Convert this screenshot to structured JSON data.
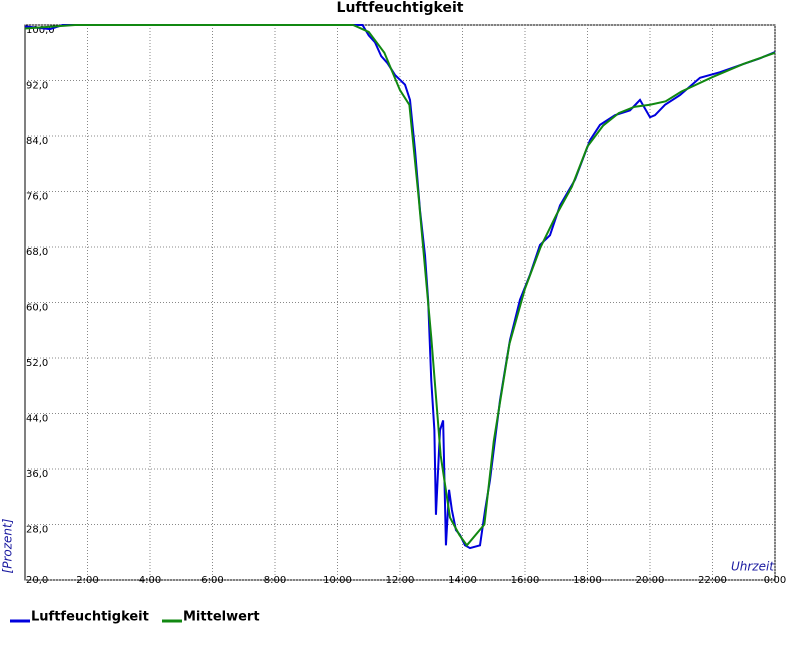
{
  "chart_data": {
    "type": "line",
    "title": "Luftfeuchtigkeit",
    "x_label": "Uhrzeit",
    "y_label": "[Prozent]",
    "xlim": [
      0,
      24
    ],
    "ylim": [
      20,
      100
    ],
    "grid": true,
    "legend": "bottom-left",
    "xticks": [
      {
        "value": 2,
        "label": "2:00"
      },
      {
        "value": 4,
        "label": "4:00"
      },
      {
        "value": 6,
        "label": "6:00"
      },
      {
        "value": 8,
        "label": "8:00"
      },
      {
        "value": 10,
        "label": "10:00"
      },
      {
        "value": 12,
        "label": "12:00"
      },
      {
        "value": 14,
        "label": "14:00"
      },
      {
        "value": 16,
        "label": "16:00"
      },
      {
        "value": 18,
        "label": "18:00"
      },
      {
        "value": 20,
        "label": "20:00"
      },
      {
        "value": 22,
        "label": "22:00"
      },
      {
        "value": 24,
        "label": "0:00"
      }
    ],
    "yticks": [
      {
        "value": 20,
        "label": "20,0"
      },
      {
        "value": 28,
        "label": "28,0"
      },
      {
        "value": 36,
        "label": "36,0"
      },
      {
        "value": 44,
        "label": "44,0"
      },
      {
        "value": 52,
        "label": "52,0"
      },
      {
        "value": 60,
        "label": "60,0"
      },
      {
        "value": 68,
        "label": "68,0"
      },
      {
        "value": 76,
        "label": "76,0"
      },
      {
        "value": 84,
        "label": "84,0"
      },
      {
        "value": 92,
        "label": "92,0"
      },
      {
        "value": 100,
        "label": "100,0"
      }
    ],
    "series": [
      {
        "name": "Luftfeuchtigkeit",
        "color": "#0000dd",
        "x": [
          0,
          0.8,
          1.2,
          10.5,
          10.8,
          11.0,
          11.2,
          11.4,
          11.6,
          11.84,
          12.16,
          12.32,
          12.48,
          12.64,
          12.8,
          12.9,
          13.0,
          13.1,
          13.15,
          13.28,
          13.38,
          13.47,
          13.57,
          13.66,
          13.79,
          13.92,
          14.08,
          14.24,
          14.56,
          14.72,
          14.88,
          15.04,
          15.2,
          15.36,
          15.52,
          15.84,
          16.16,
          16.48,
          16.8,
          17.12,
          17.6,
          18.08,
          18.4,
          18.88,
          19.36,
          19.68,
          20.0,
          20.16,
          20.48,
          20.96,
          21.6,
          22.24,
          22.88,
          23.52,
          24
        ],
        "values": [
          99.8,
          99.4,
          100,
          100,
          100,
          98.5,
          97.5,
          95.5,
          94.5,
          92.8,
          91.4,
          89.2,
          82,
          73.3,
          66.8,
          60.4,
          48.8,
          41.6,
          29.4,
          41.6,
          43,
          25,
          33,
          30.1,
          27.2,
          26.5,
          25,
          24.6,
          25,
          30,
          34.4,
          40.2,
          45.9,
          50.3,
          54.6,
          60.4,
          64,
          68.3,
          69.7,
          74,
          77.7,
          83.4,
          85.6,
          87,
          87.7,
          89.2,
          86.7,
          87,
          88.5,
          89.9,
          92.4,
          93.2,
          94.2,
          95.2,
          96.1
        ]
      },
      {
        "name": "Mittelwert",
        "color": "#118811",
        "x": [
          0,
          1.6,
          10.5,
          11,
          11.5,
          12,
          12.3,
          12.6,
          13.0,
          13.3,
          13.6,
          13.9,
          14.14,
          14.7,
          15.0,
          15.5,
          16,
          16.5,
          17,
          17.5,
          18,
          18.5,
          19,
          19.5,
          20,
          20.5,
          21,
          22,
          23,
          24
        ],
        "values": [
          99.5,
          100,
          100,
          99,
          96,
          90.6,
          88.5,
          75,
          55,
          38,
          29,
          26.5,
          25,
          28,
          40,
          54,
          62,
          68,
          72.6,
          76.7,
          82.5,
          85.5,
          87.3,
          88.2,
          88.5,
          89,
          90.4,
          92.5,
          94.4,
          96
        ]
      }
    ]
  }
}
